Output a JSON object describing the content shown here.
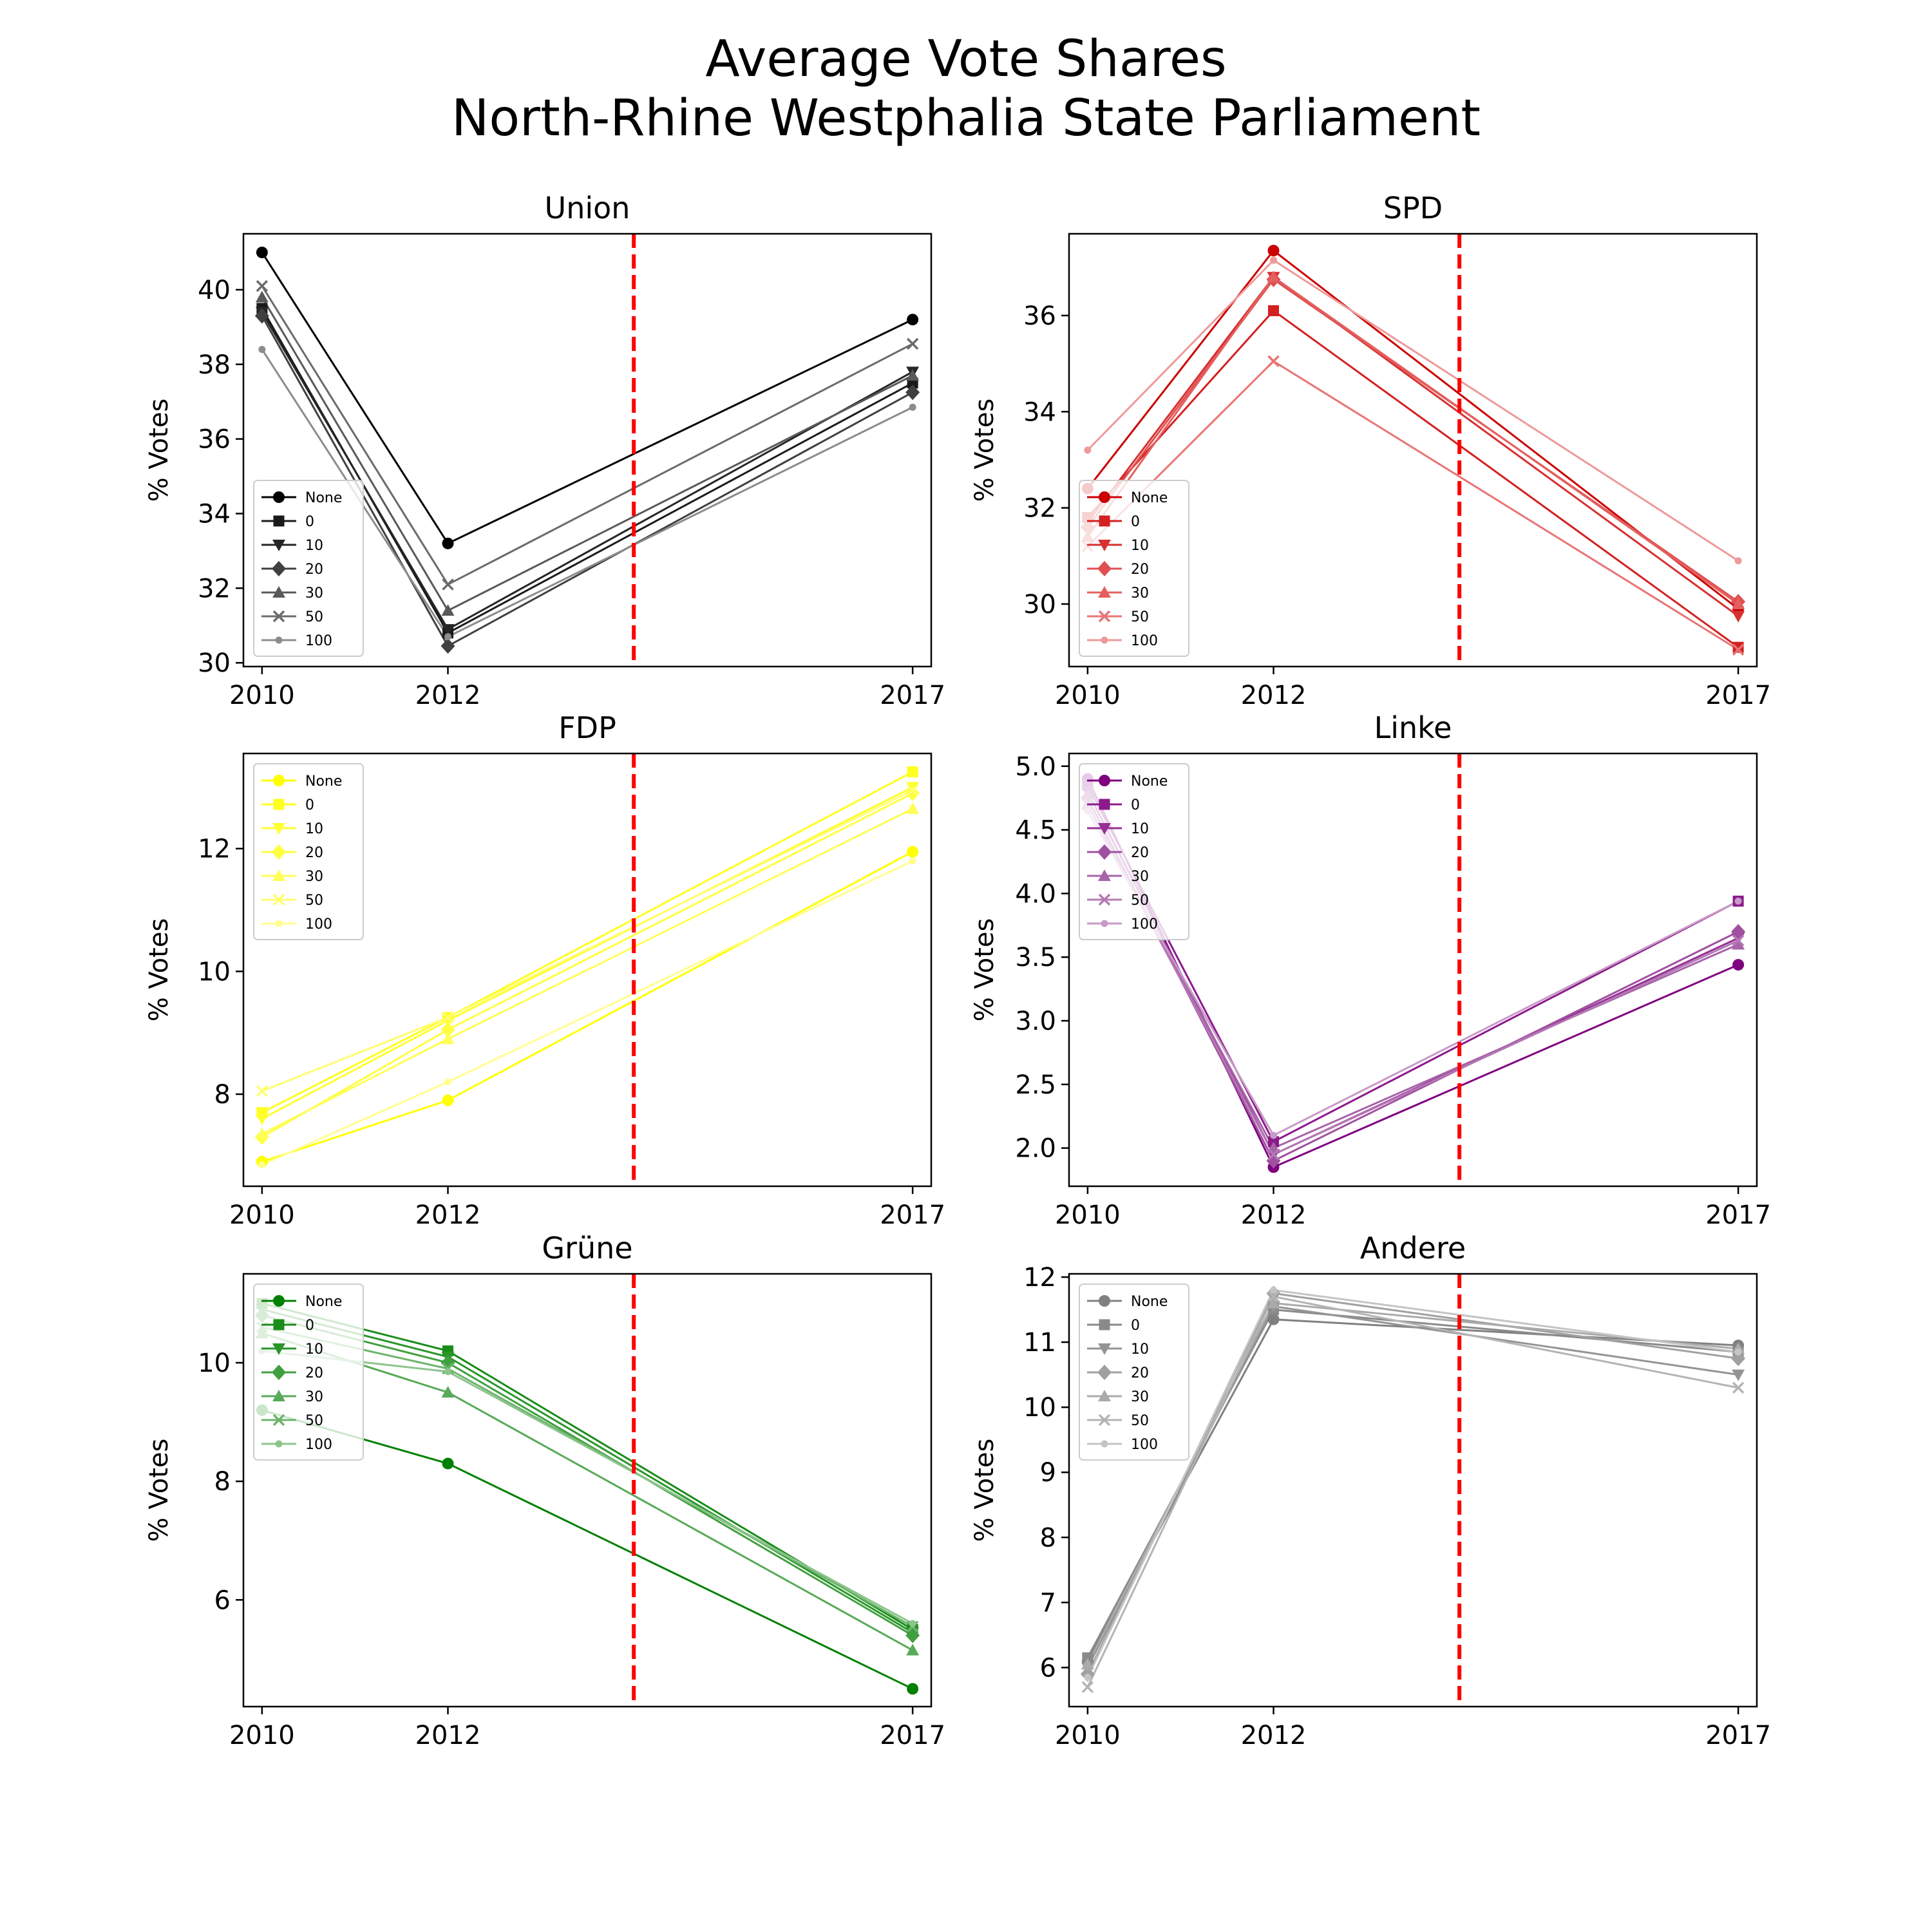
{
  "figure": {
    "title_line1": "Average Vote Shares",
    "title_line2": "North-Rhine Westphalia State Parliament"
  },
  "chart_data": [
    {
      "type": "line",
      "title": "Union",
      "ylabel": "% Votes",
      "x": [
        2010,
        2012,
        2017
      ],
      "xticks": [
        2010,
        2012,
        2017
      ],
      "xlim": [
        2009.8,
        2017.2
      ],
      "ylim": [
        29.9,
        41.5
      ],
      "yticks": [
        30,
        32,
        34,
        36,
        38,
        40
      ],
      "vline_x": 2014.0,
      "vline_color": "#ff0000",
      "legend_position": "lower-left",
      "series": [
        {
          "name": "None",
          "marker": "circle",
          "color": "#000000",
          "values": [
            41.0,
            33.2,
            39.2
          ]
        },
        {
          "name": "0",
          "marker": "square",
          "color": "#1a1a1a",
          "values": [
            39.5,
            30.8,
            37.5
          ]
        },
        {
          "name": "10",
          "marker": "triangle-down",
          "color": "#262626",
          "values": [
            39.4,
            30.9,
            37.8
          ]
        },
        {
          "name": "20",
          "marker": "diamond",
          "color": "#404040",
          "values": [
            39.3,
            30.45,
            37.25
          ]
        },
        {
          "name": "30",
          "marker": "triangle-up",
          "color": "#595959",
          "values": [
            39.8,
            31.4,
            37.7
          ]
        },
        {
          "name": "50",
          "marker": "x",
          "color": "#6b6b6b",
          "values": [
            40.1,
            32.1,
            38.55
          ]
        },
        {
          "name": "100",
          "marker": "point",
          "color": "#8c8c8c",
          "values": [
            38.4,
            30.7,
            36.85
          ]
        }
      ]
    },
    {
      "type": "line",
      "title": "SPD",
      "ylabel": "% Votes",
      "x": [
        2010,
        2012,
        2017
      ],
      "xticks": [
        2010,
        2012,
        2017
      ],
      "xlim": [
        2009.8,
        2017.2
      ],
      "ylim": [
        28.7,
        37.7
      ],
      "yticks": [
        30,
        32,
        34,
        36
      ],
      "vline_x": 2014.0,
      "vline_color": "#ff0000",
      "legend_position": "lower-left",
      "series": [
        {
          "name": "None",
          "marker": "circle",
          "color": "#cc0000",
          "values": [
            32.4,
            37.35,
            29.9
          ]
        },
        {
          "name": "0",
          "marker": "square",
          "color": "#d42020",
          "values": [
            31.8,
            36.1,
            29.1
          ]
        },
        {
          "name": "10",
          "marker": "triangle-down",
          "color": "#d83030",
          "values": [
            31.7,
            36.8,
            29.75
          ]
        },
        {
          "name": "20",
          "marker": "diamond",
          "color": "#e05050",
          "values": [
            31.6,
            36.75,
            30.05
          ]
        },
        {
          "name": "30",
          "marker": "triangle-up",
          "color": "#e46060",
          "values": [
            31.4,
            36.8,
            30.0
          ]
        },
        {
          "name": "50",
          "marker": "x",
          "color": "#e87474",
          "values": [
            31.2,
            35.05,
            29.05
          ]
        },
        {
          "name": "100",
          "marker": "point",
          "color": "#ee9a9a",
          "values": [
            33.2,
            37.15,
            30.9
          ]
        }
      ]
    },
    {
      "type": "line",
      "title": "FDP",
      "ylabel": "% Votes",
      "x": [
        2010,
        2012,
        2017
      ],
      "xticks": [
        2010,
        2012,
        2017
      ],
      "xlim": [
        2009.8,
        2017.2
      ],
      "ylim": [
        6.5,
        13.55
      ],
      "yticks": [
        8,
        10,
        12
      ],
      "vline_x": 2014.0,
      "vline_color": "#ff0000",
      "legend_position": "upper-left",
      "series": [
        {
          "name": "None",
          "marker": "circle",
          "color": "#ffff00",
          "values": [
            6.9,
            7.9,
            11.95
          ]
        },
        {
          "name": "0",
          "marker": "square",
          "color": "#ffff20",
          "values": [
            7.7,
            9.25,
            13.25
          ]
        },
        {
          "name": "10",
          "marker": "triangle-down",
          "color": "#ffff30",
          "values": [
            7.6,
            9.2,
            13.0
          ]
        },
        {
          "name": "20",
          "marker": "diamond",
          "color": "#ffff40",
          "values": [
            7.3,
            9.05,
            12.9
          ]
        },
        {
          "name": "30",
          "marker": "triangle-up",
          "color": "#ffff55",
          "values": [
            7.35,
            8.9,
            12.65
          ]
        },
        {
          "name": "50",
          "marker": "x",
          "color": "#ffff70",
          "values": [
            8.05,
            9.25,
            12.95
          ]
        },
        {
          "name": "100",
          "marker": "point",
          "color": "#ffff90",
          "values": [
            6.85,
            8.2,
            11.8
          ]
        }
      ]
    },
    {
      "type": "line",
      "title": "Linke",
      "ylabel": "% Votes",
      "x": [
        2010,
        2012,
        2017
      ],
      "xticks": [
        2010,
        2012,
        2017
      ],
      "xlim": [
        2009.8,
        2017.2
      ],
      "ylim": [
        1.7,
        5.1
      ],
      "yticks": [
        2.0,
        2.5,
        3.0,
        3.5,
        4.0,
        4.5,
        5.0
      ],
      "vline_x": 2014.0,
      "vline_color": "#ff0000",
      "legend_position": "upper-left",
      "series": [
        {
          "name": "None",
          "marker": "circle",
          "color": "#800080",
          "values": [
            4.9,
            1.85,
            3.44
          ]
        },
        {
          "name": "0",
          "marker": "square",
          "color": "#8c1a8c",
          "values": [
            4.85,
            2.05,
            3.94
          ]
        },
        {
          "name": "10",
          "marker": "triangle-down",
          "color": "#963096",
          "values": [
            4.8,
            1.95,
            3.65
          ]
        },
        {
          "name": "20",
          "marker": "diamond",
          "color": "#a050a0",
          "values": [
            4.75,
            1.9,
            3.7
          ]
        },
        {
          "name": "30",
          "marker": "triangle-up",
          "color": "#a864a8",
          "values": [
            4.7,
            2.0,
            3.6
          ]
        },
        {
          "name": "50",
          "marker": "x",
          "color": "#b478b4",
          "values": [
            4.7,
            1.95,
            3.63
          ]
        },
        {
          "name": "100",
          "marker": "point",
          "color": "#c89ac8",
          "values": [
            4.65,
            2.1,
            3.94
          ]
        }
      ]
    },
    {
      "type": "line",
      "title": "Grüne",
      "ylabel": "% Votes",
      "x": [
        2010,
        2012,
        2017
      ],
      "xticks": [
        2010,
        2012,
        2017
      ],
      "xlim": [
        2009.8,
        2017.2
      ],
      "ylim": [
        4.2,
        11.5
      ],
      "yticks": [
        6,
        8,
        10
      ],
      "vline_x": 2014.0,
      "vline_color": "#ff0000",
      "legend_position": "upper-left",
      "series": [
        {
          "name": "None",
          "marker": "circle",
          "color": "#008000",
          "values": [
            9.2,
            8.3,
            4.5
          ]
        },
        {
          "name": "0",
          "marker": "square",
          "color": "#1a8c1a",
          "values": [
            11.0,
            10.2,
            5.5
          ]
        },
        {
          "name": "10",
          "marker": "triangle-down",
          "color": "#2a962a",
          "values": [
            10.9,
            10.1,
            5.45
          ]
        },
        {
          "name": "20",
          "marker": "diamond",
          "color": "#40a040",
          "values": [
            10.8,
            10.0,
            5.4
          ]
        },
        {
          "name": "30",
          "marker": "triangle-up",
          "color": "#58aa58",
          "values": [
            10.5,
            9.5,
            5.15
          ]
        },
        {
          "name": "50",
          "marker": "x",
          "color": "#6cb46c",
          "values": [
            10.6,
            9.9,
            5.55
          ]
        },
        {
          "name": "100",
          "marker": "point",
          "color": "#8cc48c",
          "values": [
            10.2,
            9.85,
            5.6
          ]
        }
      ]
    },
    {
      "type": "line",
      "title": "Andere",
      "ylabel": "% Votes",
      "x": [
        2010,
        2012,
        2017
      ],
      "xticks": [
        2010,
        2012,
        2017
      ],
      "xlim": [
        2009.8,
        2017.2
      ],
      "ylim": [
        5.4,
        12.05
      ],
      "yticks": [
        6,
        7,
        8,
        9,
        10,
        11,
        12
      ],
      "vline_x": 2014.0,
      "vline_color": "#ff0000",
      "legend_position": "upper-left",
      "series": [
        {
          "name": "None",
          "marker": "circle",
          "color": "#808080",
          "values": [
            6.1,
            11.35,
            10.95
          ]
        },
        {
          "name": "0",
          "marker": "square",
          "color": "#8a8a8a",
          "values": [
            6.15,
            11.5,
            10.85
          ]
        },
        {
          "name": "10",
          "marker": "triangle-down",
          "color": "#949494",
          "values": [
            6.0,
            11.55,
            10.5
          ]
        },
        {
          "name": "20",
          "marker": "diamond",
          "color": "#a0a0a0",
          "values": [
            5.9,
            11.75,
            10.75
          ]
        },
        {
          "name": "30",
          "marker": "triangle-up",
          "color": "#aaaaaa",
          "values": [
            6.05,
            11.6,
            10.9
          ]
        },
        {
          "name": "50",
          "marker": "x",
          "color": "#b4b4b4",
          "values": [
            5.7,
            11.7,
            10.3
          ]
        },
        {
          "name": "100",
          "marker": "point",
          "color": "#c4c4c4",
          "values": [
            5.85,
            11.8,
            10.85
          ]
        }
      ]
    }
  ]
}
